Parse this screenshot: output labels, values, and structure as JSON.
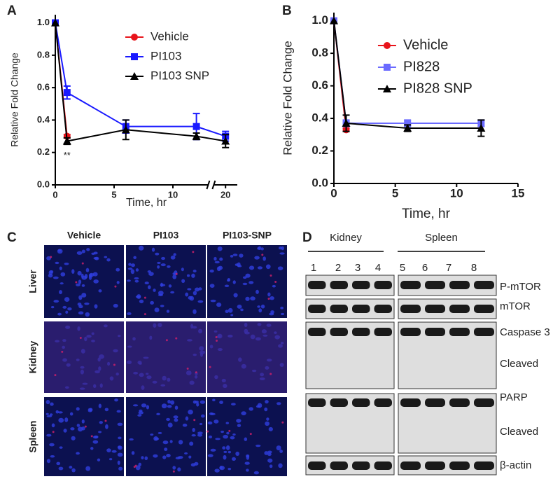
{
  "panel_labels": [
    "A",
    "B",
    "C",
    "D"
  ],
  "chart_data": [
    {
      "type": "line",
      "xlabel": "Time, hr",
      "ylabel": "Relative Fold Change",
      "xlim": [
        0,
        21
      ],
      "axis_break": [
        13,
        19
      ],
      "xticks": [
        0,
        5,
        10,
        20
      ],
      "ylim": [
        0,
        1.05
      ],
      "yticks": [
        {
          "value": 0,
          "label": "0.0"
        },
        0.2,
        0.4,
        0.6,
        0.8,
        {
          "value": 1,
          "label": "1.0"
        }
      ],
      "legend_loc": "upper right",
      "annotation": "**",
      "series": [
        {
          "name": "Vehicle",
          "color": "#e8141b",
          "marker": "circle",
          "x": [
            0,
            1
          ],
          "values": [
            1.0,
            0.3
          ],
          "errors": [
            0,
            0.01
          ]
        },
        {
          "name": "PI103",
          "color": "#1a1aff",
          "marker": "square",
          "x": [
            0,
            1,
            6,
            12,
            20
          ],
          "values": [
            1.0,
            0.57,
            0.36,
            0.36,
            0.3
          ],
          "errors": [
            0,
            0.04,
            0.04,
            0.08,
            0.03
          ]
        },
        {
          "name": "PI103 SNP",
          "color": "#000000",
          "marker": "triangle",
          "x": [
            0,
            1,
            6,
            12,
            20
          ],
          "values": [
            1.0,
            0.27,
            0.34,
            0.3,
            0.27
          ],
          "errors": [
            0,
            0.02,
            0.06,
            0.02,
            0.04
          ]
        }
      ]
    },
    {
      "type": "line",
      "xlabel": "Time, hr",
      "ylabel": "Relative Fold Change",
      "xlim": [
        0,
        15
      ],
      "xticks": [
        0,
        5,
        10,
        15
      ],
      "ylim": [
        0,
        1.05
      ],
      "yticks": [
        {
          "value": 0,
          "label": "0.0"
        },
        0.2,
        0.4,
        0.6,
        0.8,
        {
          "value": 1,
          "label": "1.0"
        }
      ],
      "legend_loc": "upper right",
      "series": [
        {
          "name": "Vehicle",
          "color": "#e8141b",
          "marker": "circle",
          "x": [
            0,
            1
          ],
          "values": [
            1.0,
            0.33
          ],
          "errors": [
            0,
            0.01
          ]
        },
        {
          "name": "PI828",
          "color": "#6b6bff",
          "marker": "square",
          "x": [
            0,
            1,
            6,
            12
          ],
          "values": [
            1.0,
            0.37,
            0.37,
            0.37
          ],
          "errors": [
            0,
            0.02,
            0.02,
            0.02
          ]
        },
        {
          "name": "PI828 SNP",
          "color": "#000000",
          "marker": "triangle",
          "x": [
            0,
            1,
            6,
            12
          ],
          "values": [
            1.0,
            0.37,
            0.34,
            0.34
          ],
          "errors": [
            0,
            0.05,
            0.02,
            0.05
          ]
        }
      ]
    }
  ],
  "microscopy": {
    "columns": [
      "Vehicle",
      "PI103",
      "PI103-SNP"
    ],
    "rows": [
      "Liver",
      "Kidney",
      "Spleen"
    ]
  },
  "western_blot": {
    "groups": [
      {
        "name": "Kidney",
        "lanes": [
          "1",
          "2",
          "3",
          "4"
        ]
      },
      {
        "name": "Spleen",
        "lanes": [
          "5",
          "6",
          "7",
          "8"
        ]
      }
    ],
    "rows": [
      "P-mTOR",
      "mTOR",
      "Caspase 3",
      "Cleaved",
      "PARP",
      "Cleaved",
      "β-actin"
    ]
  }
}
